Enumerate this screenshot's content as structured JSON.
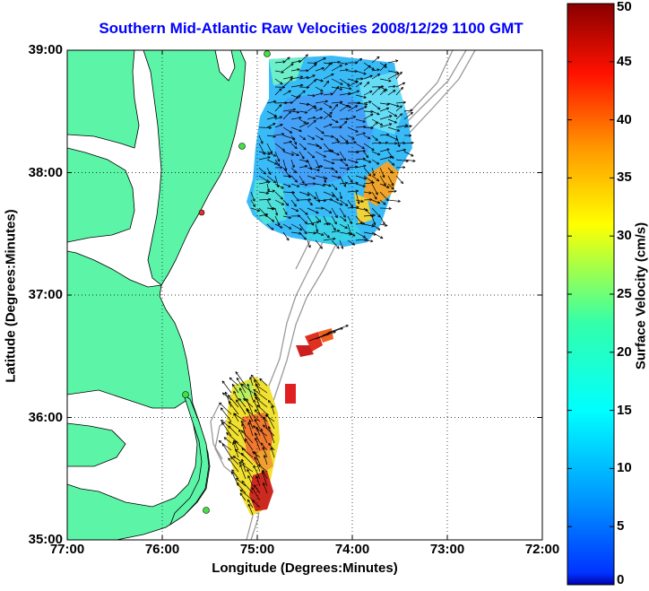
{
  "title": "Southern Mid-Atlantic Raw Velocities 2008/12/29 1100 GMT",
  "axes": {
    "xlabel": "Longitude (Degrees:Minutes)",
    "ylabel": "Latitude (Degrees:Minutes)",
    "x_ticks": [
      "77:00",
      "76:00",
      "75:00",
      "74:00",
      "73:00",
      "72:00"
    ],
    "y_ticks": [
      "39:00",
      "38:00",
      "37:00",
      "36:00",
      "35:00"
    ],
    "xlim": [
      -77,
      -72
    ],
    "ylim": [
      35,
      39
    ],
    "grid": true
  },
  "colorbar": {
    "label": "Surface Velocity (cm/s)",
    "ticks": [
      "50",
      "45",
      "40",
      "35",
      "30",
      "25",
      "20",
      "15",
      "10",
      "5",
      "0"
    ],
    "range": [
      0,
      50
    ],
    "colormap": "jet"
  },
  "colors": {
    "land": "#5cf5a8",
    "title": "#0000ff",
    "bathymetry": "#9a9a9a",
    "coast": "#000000"
  }
}
